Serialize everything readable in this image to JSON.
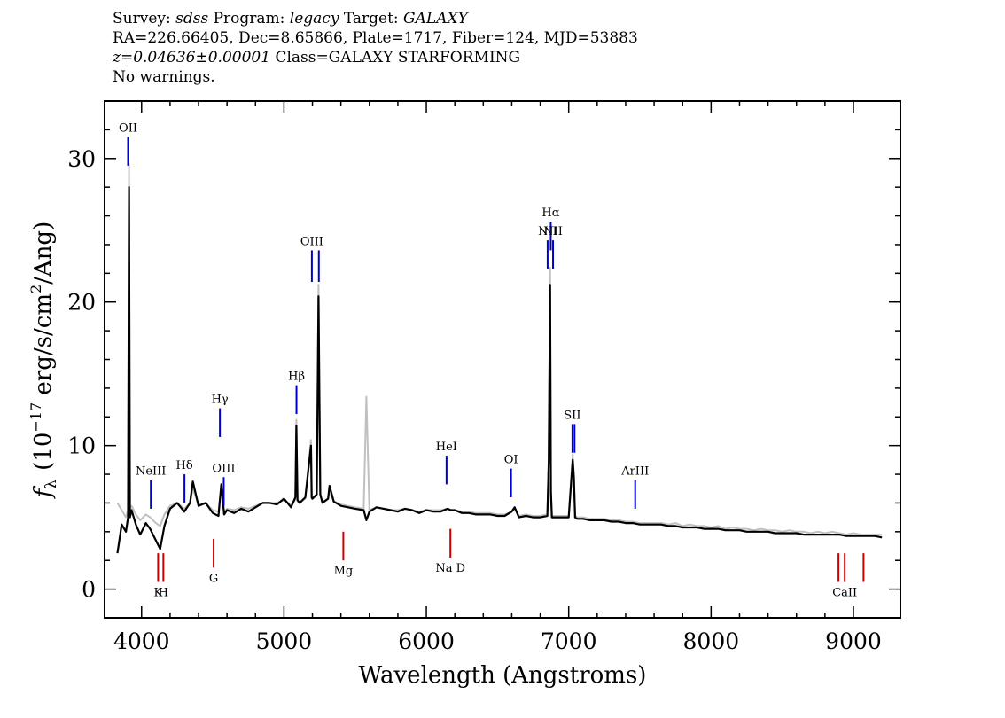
{
  "header": {
    "survey_label": "Survey:",
    "survey": "sdss",
    "program_label": "Program:",
    "program": "legacy",
    "target_label": "Target:",
    "target": "GALAXY",
    "line2": "RA=226.66405, Dec=8.65866, Plate=1717, Fiber=124, MJD=53883",
    "redshift": "z=0.04636±0.00001",
    "class_text": "Class=GALAXY STARFORMING",
    "warnings": "No warnings."
  },
  "chart_data": {
    "type": "line",
    "xlabel": "Wavelength (Angstroms)",
    "ylabel_parts": {
      "f": "f",
      "sub": "λ",
      "pre": "(10",
      "exp1": "−17",
      "mid": " erg/s/cm",
      "exp2": "2",
      "post": "/Ang)"
    },
    "xlim": [
      3740,
      9330
    ],
    "ylim": [
      -2,
      34
    ],
    "xticks": [
      4000,
      5000,
      6000,
      7000,
      8000,
      9000
    ],
    "yticks": [
      0,
      10,
      20,
      30
    ],
    "grid": false,
    "colors": {
      "spectrum": "#000000",
      "model": "#c0c0c0",
      "emission": "#0000cc",
      "absorption": "#cc0000"
    },
    "series": [
      {
        "role": "spectrum",
        "x": [
          3830,
          3860,
          3890,
          3905,
          3912,
          3918,
          3930,
          3960,
          3990,
          4030,
          4060,
          4100,
          4130,
          4160,
          4200,
          4250,
          4300,
          4340,
          4360,
          4400,
          4450,
          4500,
          4540,
          4560,
          4580,
          4600,
          4650,
          4700,
          4750,
          4800,
          4850,
          4900,
          4950,
          5000,
          5050,
          5080,
          5087,
          5095,
          5110,
          5150,
          5190,
          5195,
          5200,
          5230,
          5243,
          5255,
          5270,
          5310,
          5320,
          5350,
          5400,
          5450,
          5500,
          5560,
          5579,
          5600,
          5650,
          5700,
          5750,
          5800,
          5850,
          5900,
          5950,
          6000,
          6050,
          6100,
          6150,
          6170,
          6200,
          6250,
          6300,
          6350,
          6400,
          6450,
          6500,
          6550,
          6600,
          6620,
          6650,
          6700,
          6750,
          6800,
          6850,
          6860,
          6869,
          6875,
          6882,
          6890,
          6900,
          6950,
          7000,
          7028,
          7036,
          7045,
          7060,
          7100,
          7150,
          7200,
          7250,
          7300,
          7350,
          7400,
          7450,
          7500,
          7550,
          7600,
          7650,
          7700,
          7750,
          7800,
          7850,
          7900,
          7950,
          8000,
          8050,
          8100,
          8150,
          8200,
          8250,
          8300,
          8350,
          8400,
          8450,
          8500,
          8550,
          8600,
          8650,
          8700,
          8750,
          8800,
          8850,
          8900,
          8950,
          9000,
          9050,
          9100,
          9150,
          9200
        ],
        "y": [
          2.5,
          4.5,
          4.0,
          5.0,
          28.0,
          5.0,
          5.5,
          4.5,
          3.8,
          4.6,
          4.2,
          3.4,
          2.8,
          4.4,
          5.6,
          6.0,
          5.4,
          6.0,
          7.5,
          5.8,
          6.0,
          5.3,
          5.1,
          7.3,
          5.2,
          5.5,
          5.3,
          5.6,
          5.4,
          5.7,
          6.0,
          6.0,
          5.9,
          6.3,
          5.7,
          6.4,
          11.4,
          6.2,
          6.0,
          6.4,
          10.0,
          6.4,
          6.3,
          6.6,
          20.4,
          6.6,
          6.0,
          6.3,
          7.2,
          6.1,
          5.8,
          5.7,
          5.6,
          5.5,
          4.8,
          5.4,
          5.7,
          5.6,
          5.5,
          5.4,
          5.6,
          5.5,
          5.3,
          5.5,
          5.4,
          5.4,
          5.6,
          5.5,
          5.5,
          5.3,
          5.3,
          5.2,
          5.2,
          5.2,
          5.1,
          5.1,
          5.4,
          5.7,
          5.0,
          5.1,
          5.0,
          5.0,
          5.1,
          8.9,
          21.2,
          6.8,
          5.0,
          5.0,
          5.0,
          5.0,
          5.0,
          9.0,
          7.8,
          5.0,
          4.9,
          4.9,
          4.8,
          4.8,
          4.8,
          4.7,
          4.7,
          4.6,
          4.6,
          4.5,
          4.5,
          4.5,
          4.5,
          4.4,
          4.4,
          4.3,
          4.3,
          4.3,
          4.2,
          4.2,
          4.2,
          4.1,
          4.1,
          4.1,
          4.0,
          4.0,
          4.0,
          4.0,
          3.9,
          3.9,
          3.9,
          3.9,
          3.8,
          3.8,
          3.8,
          3.8,
          3.8,
          3.8,
          3.7,
          3.7,
          3.7,
          3.7,
          3.7,
          3.6
        ]
      },
      {
        "role": "model",
        "x": [
          3830,
          3860,
          3890,
          3905,
          3912,
          3918,
          3930,
          3960,
          3990,
          4030,
          4060,
          4100,
          4130,
          4160,
          4200,
          4250,
          4300,
          4340,
          4360,
          4400,
          4450,
          4500,
          4540,
          4560,
          4580,
          4600,
          4650,
          4700,
          4750,
          4800,
          4850,
          4900,
          4950,
          5000,
          5050,
          5080,
          5087,
          5095,
          5110,
          5150,
          5190,
          5195,
          5200,
          5230,
          5243,
          5255,
          5270,
          5310,
          5320,
          5350,
          5400,
          5450,
          5500,
          5560,
          5579,
          5600,
          5650,
          5700,
          5750,
          5800,
          5850,
          5900,
          5950,
          6000,
          6050,
          6100,
          6150,
          6170,
          6200,
          6250,
          6300,
          6350,
          6400,
          6450,
          6500,
          6550,
          6600,
          6620,
          6650,
          6700,
          6750,
          6800,
          6850,
          6860,
          6869,
          6875,
          6882,
          6890,
          6900,
          6950,
          7000,
          7028,
          7036,
          7045,
          7060,
          7100,
          7150,
          7200,
          7250,
          7300,
          7350,
          7400,
          7450,
          7500,
          7550,
          7600,
          7650,
          7700,
          7750,
          7800,
          7850,
          7900,
          7950,
          8000,
          8050,
          8100,
          8150,
          8200,
          8250,
          8300,
          8350,
          8400,
          8450,
          8500,
          8550,
          8600,
          8650,
          8700,
          8750,
          8800,
          8850,
          8900,
          8950,
          9000,
          9050,
          9100,
          9150,
          9200
        ],
        "y": [
          6.0,
          5.5,
          5.0,
          5.5,
          29.6,
          5.6,
          5.8,
          5.2,
          4.8,
          5.2,
          5.0,
          4.6,
          4.4,
          5.2,
          5.8,
          6.0,
          5.6,
          6.0,
          7.0,
          5.9,
          6.0,
          5.5,
          5.4,
          7.0,
          5.4,
          5.6,
          5.5,
          5.7,
          5.6,
          5.8,
          6.0,
          6.0,
          6.0,
          6.2,
          5.9,
          6.2,
          11.8,
          6.1,
          6.0,
          6.3,
          10.4,
          6.3,
          6.3,
          6.5,
          21.2,
          6.5,
          6.1,
          6.3,
          6.8,
          6.1,
          5.9,
          5.8,
          5.7,
          5.6,
          13.4,
          5.5,
          5.7,
          5.6,
          5.5,
          5.5,
          5.6,
          5.5,
          5.4,
          5.5,
          5.5,
          5.5,
          5.6,
          5.5,
          5.5,
          5.4,
          5.4,
          5.3,
          5.3,
          5.3,
          5.2,
          5.2,
          5.4,
          5.6,
          5.1,
          5.2,
          5.1,
          5.1,
          5.2,
          9.2,
          22.4,
          7.0,
          5.1,
          5.1,
          5.1,
          5.1,
          5.1,
          9.4,
          8.0,
          5.1,
          5.0,
          5.0,
          4.9,
          4.9,
          4.9,
          4.8,
          4.8,
          4.7,
          4.7,
          4.6,
          4.6,
          4.6,
          4.6,
          4.5,
          4.6,
          4.4,
          4.5,
          4.4,
          4.4,
          4.3,
          4.4,
          4.2,
          4.3,
          4.2,
          4.2,
          4.1,
          4.2,
          4.1,
          4.1,
          4.0,
          4.1,
          4.0,
          4.0,
          3.9,
          4.0,
          3.9,
          4.0,
          3.9,
          3.8,
          3.9,
          3.8,
          3.8,
          3.8,
          3.8
        ]
      }
    ],
    "emission_lines": [
      {
        "label": "OII",
        "x": 3905,
        "y0": 29.5,
        "y1": 31.5
      },
      {
        "label": "NeIII",
        "x": 4065,
        "y0": 5.6,
        "y1": 7.6
      },
      {
        "label": "Hδ",
        "x": 4301,
        "y0": 6.0,
        "y1": 8.0
      },
      {
        "label": "Hγ",
        "x": 4550,
        "y0": 10.6,
        "y1": 12.6
      },
      {
        "label": "OIII",
        "x": 4577,
        "y0": 5.8,
        "y1": 7.8
      },
      {
        "label": "Hβ",
        "x": 5088,
        "y0": 12.2,
        "y1": 14.2
      },
      {
        "label": "OIII",
        "x": 5196,
        "y0": 21.4,
        "y1": 23.6
      },
      {
        "label": "",
        "x": 5245,
        "y0": 21.4,
        "y1": 23.6
      },
      {
        "label": "HeI",
        "x": 6142,
        "y0": 7.3,
        "y1": 9.3
      },
      {
        "label": "OI",
        "x": 6595,
        "y0": 6.4,
        "y1": 8.4
      },
      {
        "label": "NII",
        "x": 6852,
        "y0": 22.3,
        "y1": 24.3
      },
      {
        "label": "Hα",
        "x": 6874,
        "y0": 23.6,
        "y1": 25.6
      },
      {
        "label": "NII",
        "x": 6890,
        "y0": 22.3,
        "y1": 24.3
      },
      {
        "label": "SII",
        "x": 7026,
        "y0": 9.5,
        "y1": 11.5
      },
      {
        "label": "",
        "x": 7041,
        "y0": 9.5,
        "y1": 11.5
      },
      {
        "label": "ArIII",
        "x": 7467,
        "y0": 5.6,
        "y1": 7.6
      }
    ],
    "absorption_lines": [
      {
        "label": "K",
        "x": 4116,
        "y0": 0.5,
        "y1": 2.5
      },
      {
        "label": "H",
        "x": 4153,
        "y0": 0.5,
        "y1": 2.5
      },
      {
        "label": "G",
        "x": 4506,
        "y0": 1.5,
        "y1": 3.5
      },
      {
        "label": "Mg",
        "x": 5417,
        "y0": 2.0,
        "y1": 4.0
      },
      {
        "label": "Na D",
        "x": 6169,
        "y0": 2.2,
        "y1": 4.2
      },
      {
        "label": "",
        "x": 8895,
        "y0": 0.5,
        "y1": 2.5
      },
      {
        "label": "CaII",
        "x": 8939,
        "y0": 0.5,
        "y1": 2.5
      },
      {
        "label": "",
        "x": 9071,
        "y0": 0.5,
        "y1": 2.5
      }
    ]
  }
}
